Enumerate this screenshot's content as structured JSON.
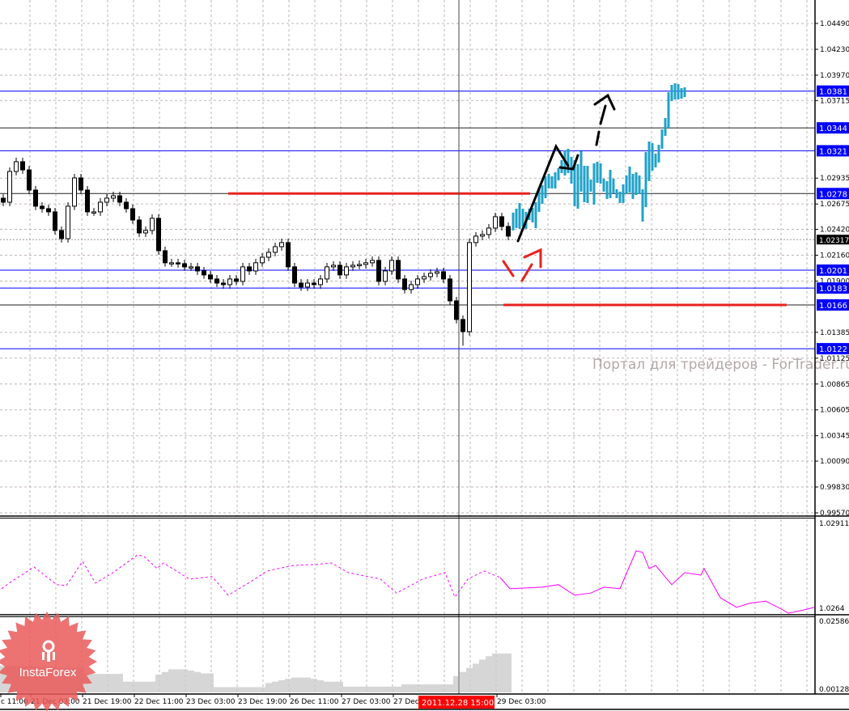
{
  "chart_data": {
    "type": "candlestick",
    "timeframe_bar": "1 hour",
    "colors": {
      "candle": "#000000",
      "forecast": "#1fa2c8",
      "levels": "#0000ff",
      "red_segments": "#e8231f",
      "indicator": "#ff00ff",
      "histogram": "#999999",
      "background": "#ffffff"
    },
    "main": {
      "ylim": [
        0.9957,
        1.0449
      ],
      "yticks": [
        "1.04490",
        "1.04230",
        "1.03970",
        "1.03715",
        "1.02935",
        "1.02675",
        "1.02420",
        "1.02160",
        "1.01900",
        "1.01385",
        "1.01125",
        "1.00865",
        "1.00605",
        "1.00345",
        "1.00090",
        "0.99830",
        "0.99570"
      ],
      "ytick_values": [
        1.0449,
        1.0423,
        1.0397,
        1.03715,
        1.02935,
        1.02675,
        1.0242,
        1.0216,
        1.019,
        1.01385,
        1.01125,
        1.00865,
        1.00605,
        1.00345,
        1.0009,
        0.9983,
        0.9957
      ],
      "current_price": {
        "label": "1.02317",
        "value": 1.02317
      },
      "closes": [
        1.02693,
        1.03002,
        1.031,
        1.03018,
        1.02815,
        1.02653,
        1.02628,
        1.02596,
        1.02409,
        1.02327,
        1.02653,
        1.02937,
        1.02815,
        1.02596,
        1.02596,
        1.02693,
        1.02734,
        1.02758,
        1.02693,
        1.02628,
        1.02514,
        1.02384,
        1.02409,
        1.02531,
        1.02205,
        1.02084,
        1.02084,
        1.02075,
        1.02043,
        1.02043,
        1.02002,
        1.01962,
        1.01921,
        1.0188,
        1.01864,
        1.01921,
        1.01897,
        1.02043,
        1.02002,
        1.02084,
        1.0214,
        1.02189,
        1.02246,
        1.02287,
        1.02043,
        1.0188,
        1.0184,
        1.0188,
        1.01864,
        1.01921,
        1.02043,
        1.02059,
        1.01962,
        1.02043,
        1.02059,
        1.02067,
        1.02084,
        1.02108,
        1.01897,
        1.02002,
        1.02108,
        1.01921,
        1.01815,
        1.01864,
        1.01921,
        1.01945,
        1.01978,
        1.01994,
        1.01921,
        1.01701,
        1.01514,
        1.01392,
        1.02287,
        1.02352,
        1.02368,
        1.02433,
        1.02547,
        1.02449,
        1.02352
      ],
      "low_spike": {
        "index": 71,
        "low": 1.0125
      },
      "forecast_bars": [
        [
          1.02588,
          1.02409
        ],
        [
          1.02628,
          1.02433
        ],
        [
          1.02685,
          1.02425
        ],
        [
          1.02628,
          1.02449
        ],
        [
          1.02596,
          1.02425
        ],
        [
          1.02628,
          1.02514
        ],
        [
          1.02636,
          1.0249
        ],
        [
          1.02693,
          1.02433
        ],
        [
          1.0284,
          1.02596
        ],
        [
          1.02864,
          1.02677
        ],
        [
          1.02953,
          1.02734
        ],
        [
          1.02978,
          1.02831
        ],
        [
          1.02953,
          1.02831
        ],
        [
          1.02994,
          1.02831
        ],
        [
          1.03035,
          1.02913
        ],
        [
          1.03116,
          1.02986
        ],
        [
          1.03214,
          1.02962
        ],
        [
          1.0323,
          1.02986
        ],
        [
          1.03149,
          1.0288
        ],
        [
          1.03116,
          1.02653
        ],
        [
          1.03075,
          1.02628
        ],
        [
          1.03205,
          1.02799
        ],
        [
          1.03059,
          1.02693
        ],
        [
          1.03059,
          1.02685
        ],
        [
          1.02921,
          1.02799
        ],
        [
          1.03084,
          1.02669
        ],
        [
          1.031,
          1.02888
        ],
        [
          1.03084,
          1.0288
        ],
        [
          1.02929,
          1.02799
        ],
        [
          1.02905,
          1.02726
        ],
        [
          1.03018,
          1.02734
        ],
        [
          1.02929,
          1.02783
        ],
        [
          1.02823,
          1.02734
        ],
        [
          1.02799,
          1.02685
        ],
        [
          1.02872,
          1.02685
        ],
        [
          1.02962,
          1.02775
        ],
        [
          1.03051,
          1.02791
        ],
        [
          1.02978,
          1.02726
        ],
        [
          1.02994,
          1.02766
        ],
        [
          1.02962,
          1.02775
        ],
        [
          1.02823,
          1.02498
        ],
        [
          1.03197,
          1.02644
        ],
        [
          1.03303,
          1.02905
        ],
        [
          1.03287,
          1.0301
        ],
        [
          1.03181,
          1.03043
        ],
        [
          1.0327,
          1.03092
        ],
        [
          1.03425,
          1.0323
        ],
        [
          1.03539,
          1.0336
        ],
        [
          1.03799,
          1.03441
        ],
        [
          1.03872,
          1.0371
        ],
        [
          1.03888,
          1.03726
        ],
        [
          1.0388,
          1.03726
        ],
        [
          1.0384,
          1.03734
        ],
        [
          1.03848,
          1.0375
        ]
      ],
      "levels": [
        {
          "label": "1.0381",
          "value": 1.0381,
          "line": "blue"
        },
        {
          "label": "1.0344",
          "value": 1.0344,
          "line": "black"
        },
        {
          "label": "1.0321",
          "value": 1.0321,
          "line": "blue"
        },
        {
          "label": "1.0278",
          "value": 1.0278,
          "line": "black"
        },
        {
          "label": "1.0201",
          "value": 1.0201,
          "line": "blue"
        },
        {
          "label": "1.0183",
          "value": 1.0183,
          "line": "blue"
        },
        {
          "label": "1.0166",
          "value": 1.0166,
          "line": "black"
        },
        {
          "label": "1.0122",
          "value": 1.0122,
          "line": "blue"
        }
      ]
    },
    "indicator": {
      "ylim": [
        1.0262,
        1.02911
      ],
      "yticks": [
        "1.02911",
        "1.0264"
      ],
      "points": [
        [
          0,
          1.02703
        ],
        [
          3,
          1.02726
        ],
        [
          10,
          1.02773
        ],
        [
          17,
          1.02716
        ],
        [
          20,
          1.02713
        ],
        [
          25,
          1.02791
        ],
        [
          29,
          1.02721
        ],
        [
          34,
          1.02752
        ],
        [
          42,
          1.02812
        ],
        [
          44,
          1.02807
        ],
        [
          48,
          1.02768
        ],
        [
          50,
          1.02786
        ],
        [
          58,
          1.02734
        ],
        [
          65,
          1.02742
        ],
        [
          70,
          1.02682
        ],
        [
          77,
          1.02726
        ],
        [
          82,
          1.0276
        ],
        [
          90,
          1.02778
        ],
        [
          97,
          1.02781
        ],
        [
          102,
          1.02786
        ],
        [
          107,
          1.02755
        ],
        [
          117,
          1.02734
        ],
        [
          122,
          1.02689
        ],
        [
          130,
          1.02734
        ],
        [
          137,
          1.02755
        ],
        [
          140,
          1.02676
        ],
        [
          144,
          1.02734
        ],
        [
          149,
          1.0276
        ],
        [
          154,
          1.02739
        ],
        [
          157,
          1.02703
        ],
        [
          167,
          1.02708
        ],
        [
          172,
          1.02716
        ],
        [
          177,
          1.02682
        ],
        [
          182,
          1.02689
        ],
        [
          186,
          1.02708
        ],
        [
          191,
          1.02703
        ],
        [
          196,
          1.02825
        ],
        [
          198,
          1.0282
        ],
        [
          200,
          1.02768
        ],
        [
          202,
          1.02778
        ],
        [
          207,
          1.02716
        ],
        [
          211,
          1.02755
        ],
        [
          216,
          1.02747
        ],
        [
          217,
          1.02768
        ],
        [
          222,
          1.02674
        ],
        [
          227,
          1.02643
        ],
        [
          231,
          1.02656
        ],
        [
          236,
          1.02663
        ],
        [
          241,
          1.02637
        ],
        [
          243,
          1.02624
        ],
        [
          248,
          1.02635
        ],
        [
          251,
          1.02643
        ]
      ],
      "dashed_until_bar": 156
    },
    "histogram": {
      "ylim": [
        0.0,
        0.02586
      ],
      "yticks": [
        "0.02586",
        "0.00128"
      ],
      "values": [
        0.0098,
        0.0098,
        0.0097,
        0.0096,
        0.0095,
        0.0094,
        0.0093,
        0.0092,
        0.0091,
        0.009,
        0.009,
        0.009,
        0.009,
        0.0068,
        0.0068,
        0.0068,
        0.0068,
        0.0068,
        0.0068,
        0.004,
        0.004,
        0.004,
        0.004,
        0.004,
        0.0065,
        0.0075,
        0.0085,
        0.0085,
        0.0085,
        0.008,
        0.0075,
        0.007,
        0.007,
        0.002,
        0.002,
        0.002,
        0.002,
        0.002,
        0.002,
        0.002,
        0.002,
        0.0035,
        0.004,
        0.0045,
        0.005,
        0.0055,
        0.0055,
        0.0055,
        0.005,
        0.0045,
        0.004,
        0.004,
        0.004,
        0.0022,
        0.0022,
        0.0022,
        0.0022,
        0.0022,
        0.0022,
        0.0022,
        0.0022,
        0.0022,
        0.003,
        0.003,
        0.003,
        0.003,
        0.003,
        0.003,
        0.003,
        0.003,
        0.006,
        0.0075,
        0.009,
        0.0105,
        0.012,
        0.0132,
        0.0142,
        0.0142,
        0.0142
      ]
    },
    "xticks": [
      "c 11:00",
      "21 Dec 03:00",
      "21 Dec 19:00",
      "22 Dec 11:00",
      "23 Dec 03:00",
      "23 Dec 19:00",
      "26 Dec 11:00",
      "27 Dec 03:00",
      "27 Dec",
      "29 Dec 03:00"
    ],
    "crosshair_time": "2011.12.28 15:00",
    "watermark": "Портал для трейдеров - ForTrader.ru",
    "logo": "InstaForex"
  }
}
